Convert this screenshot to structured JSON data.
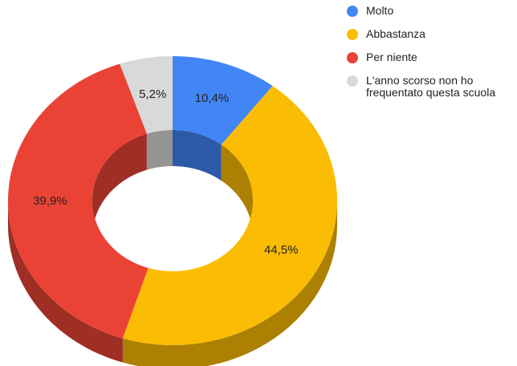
{
  "chart_data": {
    "type": "pie",
    "donut": true,
    "three_d": true,
    "categories": [
      "Molto",
      "Abbastanza",
      "Per niente",
      "L'anno scorso non ho frequentato questa scuola"
    ],
    "values": [
      10.4,
      44.5,
      39.9,
      5.2
    ],
    "value_labels": [
      "10,4%",
      "44,5%",
      "39,9%",
      "5,2%"
    ],
    "colors": [
      "#4285f4",
      "#fbbc04",
      "#ea4335",
      "#d9d9d9"
    ],
    "legend": "right"
  }
}
